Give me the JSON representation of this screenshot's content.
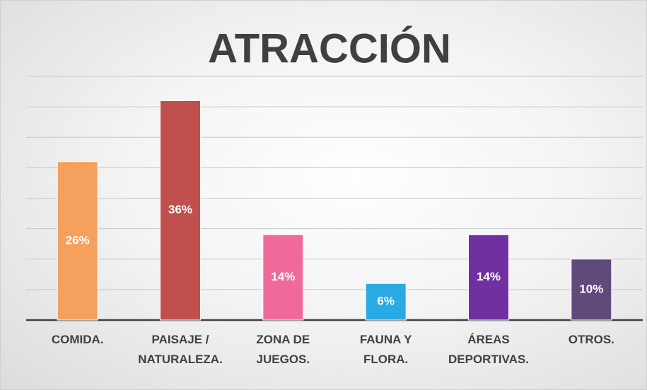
{
  "chart_data": {
    "type": "bar",
    "title": "ATRACCIÓN",
    "categories": [
      "COMIDA.",
      "PAISAJE /\nNATURALEZA.",
      "ZONA DE\nJUEGOS.",
      "FAUNA Y\nFLORA.",
      "ÁREAS\nDEPORTIVAS.",
      "OTROS."
    ],
    "values": [
      26,
      36,
      14,
      6,
      14,
      10
    ],
    "value_labels": [
      "26%",
      "36%",
      "14%",
      "6%",
      "14%",
      "10%"
    ],
    "colors": [
      "#f5a05c",
      "#c0504d",
      "#ef6a9b",
      "#2aaae2",
      "#7030a0",
      "#604a7b"
    ],
    "ylim": [
      0,
      40
    ],
    "yticks": [
      0,
      5,
      10,
      15,
      20,
      25,
      30,
      35,
      40
    ],
    "grid": true
  }
}
